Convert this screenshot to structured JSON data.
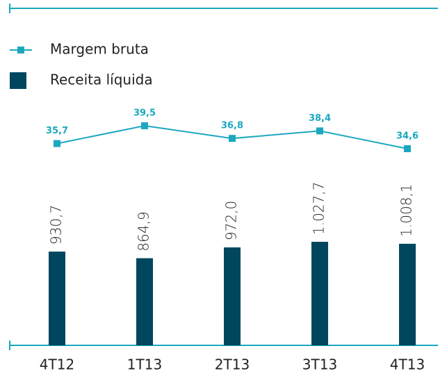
{
  "chart_data": {
    "type": "bar",
    "categories": [
      "4T12",
      "1T13",
      "2T13",
      "3T13",
      "4T13"
    ],
    "series": [
      {
        "name": "Margem bruta",
        "type": "line",
        "color": "#1ba8bf",
        "values": [
          35.7,
          39.5,
          36.8,
          38.4,
          34.6
        ],
        "value_labels": [
          "35,7",
          "39,5",
          "36,8",
          "38,4",
          "34,6"
        ]
      },
      {
        "name": "Receita líquida",
        "type": "bar",
        "color": "#00465f",
        "values": [
          930.7,
          864.9,
          972.0,
          1027.7,
          1008.1
        ],
        "value_labels": [
          "930,7",
          "864,9",
          "972,0",
          "1.027,7",
          "1.008,1"
        ]
      }
    ],
    "legend": "top-left"
  }
}
